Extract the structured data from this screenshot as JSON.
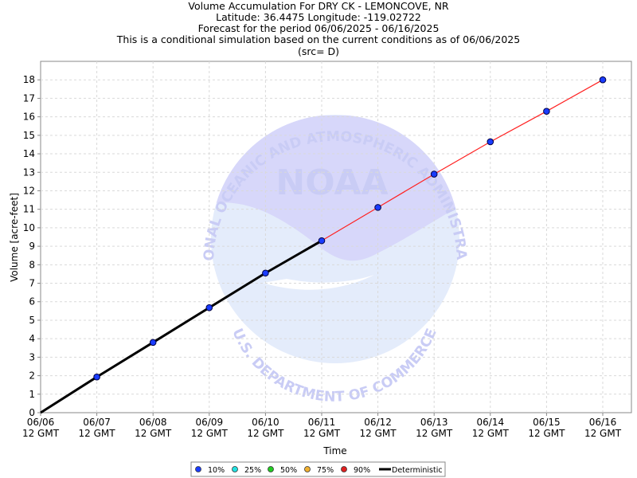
{
  "title_lines": [
    "Volume Accumulation For DRY CK - LEMONCOVE, NR",
    "Latitude: 36.4475 Longitude: -119.02722",
    "Forecast for the period 06/06/2025 - 06/16/2025",
    "This is a conditional simulation based on the current conditions as of 06/06/2025",
    "(src= D)"
  ],
  "watermark": {
    "logo_text": "NOAA",
    "ring_top": "NATIONAL OCEANIC AND ATMOSPHERIC ADMINISTRATION",
    "ring_bottom": "U.S. DEPARTMENT OF COMMERCE"
  },
  "legend": [
    {
      "label": "10%",
      "color": "#1a3cff",
      "kind": "dot"
    },
    {
      "label": "25%",
      "color": "#22e0e0",
      "kind": "dot"
    },
    {
      "label": "50%",
      "color": "#22cc22",
      "kind": "dot"
    },
    {
      "label": "75%",
      "color": "#f0b030",
      "kind": "dot"
    },
    {
      "label": "90%",
      "color": "#e02020",
      "kind": "dot"
    },
    {
      "label": "Deterministic",
      "color": "#000000",
      "kind": "line"
    }
  ],
  "chart_data": {
    "type": "line",
    "xlabel": "Time",
    "ylabel": "Volume [acre-feet]",
    "x_ticks": [
      [
        "06/06",
        "12 GMT"
      ],
      [
        "06/07",
        "12 GMT"
      ],
      [
        "06/08",
        "12 GMT"
      ],
      [
        "06/09",
        "12 GMT"
      ],
      [
        "06/10",
        "12 GMT"
      ],
      [
        "06/11",
        "12 GMT"
      ],
      [
        "06/12",
        "12 GMT"
      ],
      [
        "06/13",
        "12 GMT"
      ],
      [
        "06/14",
        "12 GMT"
      ],
      [
        "06/15",
        "12 GMT"
      ],
      [
        "06/16",
        "12 GMT"
      ]
    ],
    "x_dates": [
      "06/06 12 GMT",
      "06/16 12 GMT"
    ],
    "ylim": [
      0,
      19
    ],
    "y_ticks": [
      0,
      1,
      2,
      3,
      4,
      5,
      6,
      7,
      8,
      9,
      10,
      11,
      12,
      13,
      14,
      15,
      16,
      17,
      18
    ],
    "grid": true,
    "legend_position": "bottom-center",
    "series": [
      {
        "name": "Deterministic",
        "color": "#000000",
        "x": [
          "06/06 12 GMT",
          "06/07 12 GMT",
          "06/08 12 GMT",
          "06/09 12 GMT",
          "06/10 12 GMT",
          "06/11 12 GMT"
        ],
        "values": [
          0,
          1.93,
          3.8,
          5.68,
          7.55,
          9.3
        ]
      },
      {
        "name": "10%",
        "color": "#1a3cff",
        "line_color": "#ff2020",
        "x": [
          "06/07 12 GMT",
          "06/08 12 GMT",
          "06/09 12 GMT",
          "06/10 12 GMT",
          "06/11 12 GMT",
          "06/12 12 GMT",
          "06/13 12 GMT",
          "06/14 12 GMT",
          "06/15 12 GMT",
          "06/16 12 GMT"
        ],
        "values": [
          1.93,
          3.8,
          5.68,
          7.55,
          9.3,
          11.1,
          12.9,
          14.65,
          16.3,
          18.0
        ]
      }
    ]
  }
}
